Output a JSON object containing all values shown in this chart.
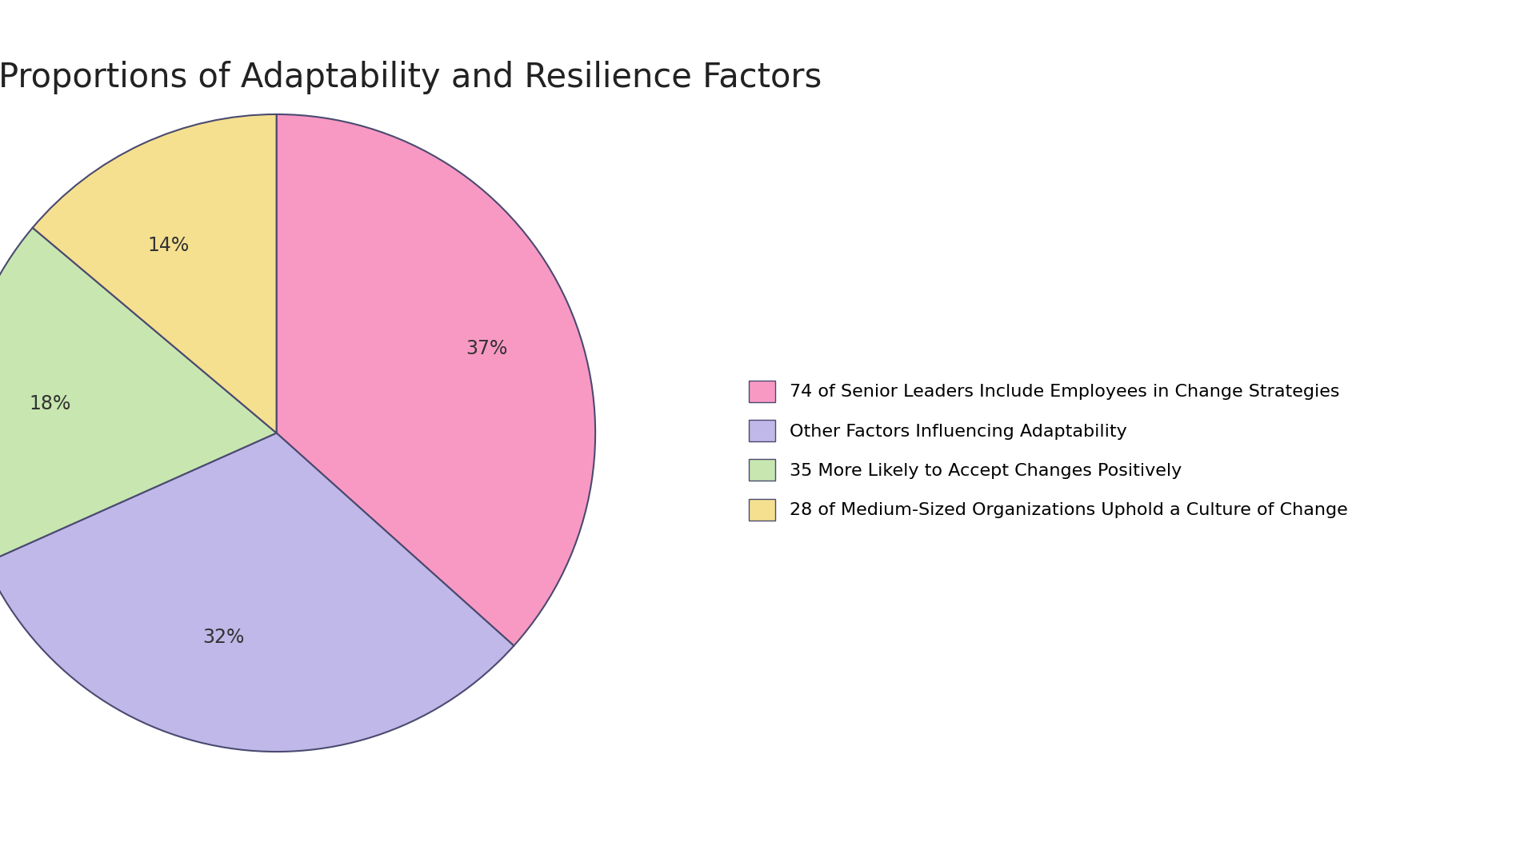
{
  "title": "Proportions of Adaptability and Resilience Factors",
  "slices": [
    37,
    32,
    18,
    14
  ],
  "colors": [
    "#F899C4",
    "#C0B8E8",
    "#C8E6B0",
    "#F5E090"
  ],
  "labels": [
    "37%",
    "32%",
    "18%",
    "14%"
  ],
  "legend_labels": [
    "74 of Senior Leaders Include Employees in Change Strategies",
    "Other Factors Influencing Adaptability",
    "35 More Likely to Accept Changes Positively",
    "28 of Medium-Sized Organizations Uphold a Culture of Change"
  ],
  "startangle": 90,
  "title_fontsize": 30,
  "label_fontsize": 17,
  "legend_fontsize": 16,
  "background_color": "#FFFFFF",
  "edge_color": "#4A4A70"
}
